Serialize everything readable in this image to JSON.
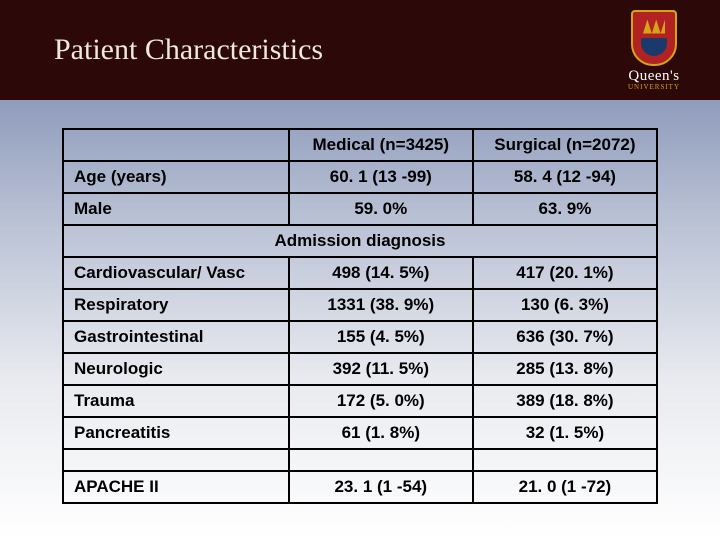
{
  "title": "Patient Characteristics",
  "logo": {
    "name": "Queen's",
    "sub": "UNIVERSITY"
  },
  "table": {
    "headers": {
      "col1": "",
      "col2": "Medical (n=3425)",
      "col3": "Surgical (n=2072)"
    },
    "top_rows": [
      {
        "label": "Age (years)",
        "c1": "60. 1 (13 -99)",
        "c2": "58. 4 (12 -94)"
      },
      {
        "label": "Male",
        "c1": "59. 0%",
        "c2": "63. 9%"
      }
    ],
    "section_title": "Admission diagnosis",
    "dx_rows": [
      {
        "label": "Cardiovascular/ Vasc",
        "c1": "498 (14. 5%)",
        "c2": "417 (20. 1%)"
      },
      {
        "label": "Respiratory",
        "c1": "1331 (38. 9%)",
        "c2": "130 (6. 3%)"
      },
      {
        "label": "Gastrointestinal",
        "c1": "155 (4. 5%)",
        "c2": "636 (30. 7%)"
      },
      {
        "label": "Neurologic",
        "c1": "392 (11. 5%)",
        "c2": "285 (13. 8%)"
      },
      {
        "label": "Trauma",
        "c1": "172 (5. 0%)",
        "c2": "389 (18. 8%)"
      },
      {
        "label": "Pancreatitis",
        "c1": "61 (1. 8%)",
        "c2": "32 (1. 5%)"
      }
    ],
    "bottom_rows": [
      {
        "label": "APACHE II",
        "c1": "23. 1 (1 -54)",
        "c2": "21. 0 (1 -72)"
      }
    ]
  }
}
